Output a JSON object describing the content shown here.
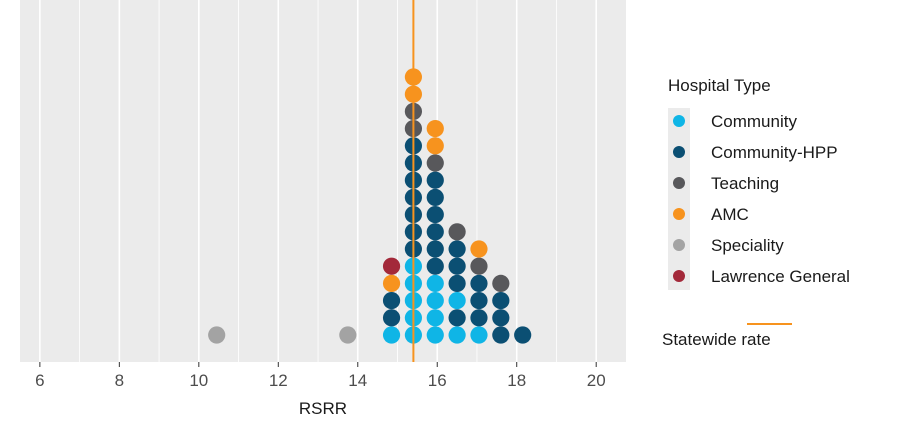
{
  "chart_data": {
    "type": "scatter",
    "subtype": "dot-stack",
    "xlabel": "RSRR",
    "ylabel": "",
    "xlim": [
      5.5,
      20.75
    ],
    "xticks": [
      6,
      8,
      10,
      12,
      14,
      16,
      18,
      20
    ],
    "tick_labels": [
      "6",
      "8",
      "10",
      "12",
      "14",
      "16",
      "18",
      "20"
    ],
    "grid": true,
    "legend": {
      "title": "Hospital Type",
      "position": "right",
      "entries": [
        {
          "label": "Community",
          "color": "#0fb5e6"
        },
        {
          "label": "Community-HPP",
          "color": "#0b4f73"
        },
        {
          "label": "Teaching",
          "color": "#58585b"
        },
        {
          "label": "AMC",
          "color": "#f7931e"
        },
        {
          "label": "Speciality",
          "color": "#a3a3a3"
        },
        {
          "label": "Lawrence General",
          "color": "#a3293a"
        }
      ]
    },
    "reference_line": {
      "label": "Statewide rate",
      "x": 15.4,
      "color": "#f7931e"
    },
    "columns": [
      {
        "x": 10.45,
        "stack": [
          "Speciality"
        ]
      },
      {
        "x": 13.75,
        "stack": [
          "Speciality"
        ]
      },
      {
        "x": 14.85,
        "stack": [
          "Community",
          "Community-HPP",
          "Community-HPP",
          "AMC",
          "Lawrence General"
        ]
      },
      {
        "x": 15.4,
        "stack": [
          "Community",
          "Community",
          "Community",
          "Community",
          "Community",
          "Community-HPP",
          "Community-HPP",
          "Community-HPP",
          "Community-HPP",
          "Community-HPP",
          "Community-HPP",
          "Community-HPP",
          "Teaching",
          "Teaching",
          "AMC",
          "AMC"
        ]
      },
      {
        "x": 15.95,
        "stack": [
          "Community",
          "Community",
          "Community",
          "Community",
          "Community-HPP",
          "Community-HPP",
          "Community-HPP",
          "Community-HPP",
          "Community-HPP",
          "Community-HPP",
          "Teaching",
          "AMC",
          "AMC"
        ]
      },
      {
        "x": 16.5,
        "stack": [
          "Community",
          "Community-HPP",
          "Community",
          "Community-HPP",
          "Community-HPP",
          "Community-HPP",
          "Teaching"
        ]
      },
      {
        "x": 17.05,
        "stack": [
          "Community",
          "Community-HPP",
          "Community-HPP",
          "Community-HPP",
          "Teaching",
          "AMC"
        ]
      },
      {
        "x": 17.6,
        "stack": [
          "Community-HPP",
          "Community-HPP",
          "Community-HPP",
          "Teaching"
        ]
      },
      {
        "x": 18.15,
        "stack": [
          "Community-HPP"
        ]
      }
    ]
  }
}
